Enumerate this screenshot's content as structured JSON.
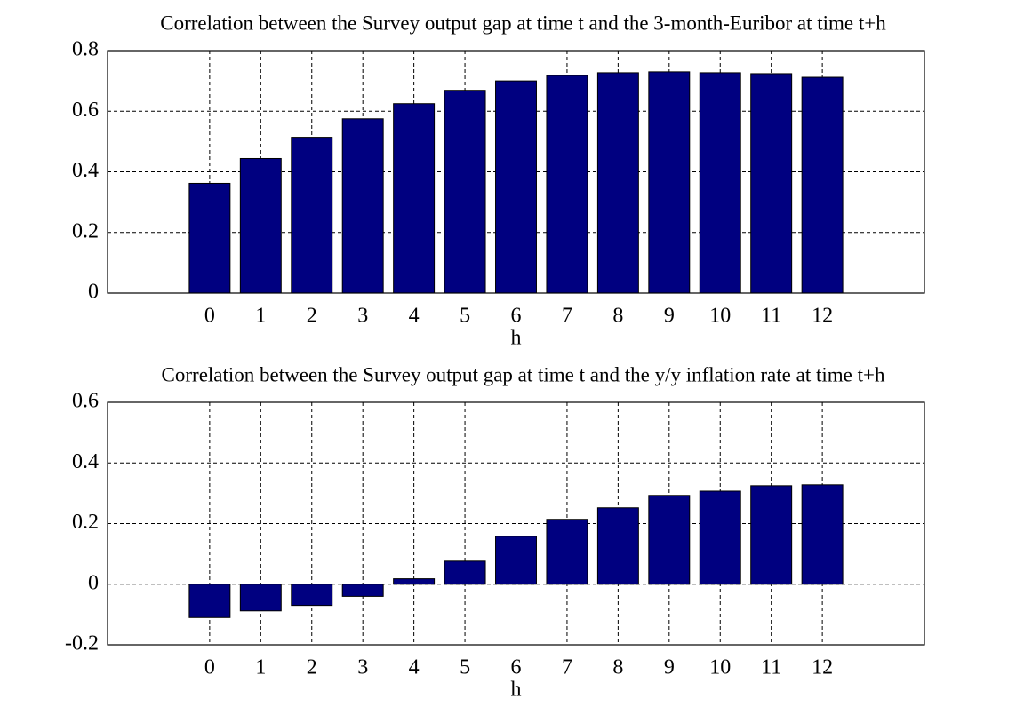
{
  "chart_data": [
    {
      "type": "bar",
      "title": "Correlation between the Survey output gap at time t and the 3-month-Euribor at time t+h",
      "x_label": "h",
      "x": [
        0,
        1,
        2,
        3,
        4,
        5,
        6,
        7,
        8,
        9,
        10,
        11,
        12
      ],
      "values": [
        0.362,
        0.444,
        0.514,
        0.575,
        0.625,
        0.669,
        0.7,
        0.718,
        0.727,
        0.73,
        0.727,
        0.724,
        0.712
      ],
      "color": "#000080",
      "xlim": [
        -2,
        14
      ],
      "xticks": [
        0,
        1,
        2,
        3,
        4,
        5,
        6,
        7,
        8,
        9,
        10,
        11,
        12
      ],
      "ylim": [
        0,
        0.8
      ],
      "yticks": [
        0,
        0.2,
        0.4,
        0.6,
        0.8
      ],
      "grid": true
    },
    {
      "type": "bar",
      "title": "Correlation between the Survey output gap at time t and the y/y inflation rate at time t+h",
      "x_label": "h",
      "x": [
        0,
        1,
        2,
        3,
        4,
        5,
        6,
        7,
        8,
        9,
        10,
        11,
        12
      ],
      "values": [
        -0.11,
        -0.088,
        -0.07,
        -0.04,
        0.018,
        0.076,
        0.158,
        0.214,
        0.252,
        0.293,
        0.307,
        0.325,
        0.328
      ],
      "color": "#000080",
      "xlim": [
        -2,
        14
      ],
      "xticks": [
        0,
        1,
        2,
        3,
        4,
        5,
        6,
        7,
        8,
        9,
        10,
        11,
        12
      ],
      "ylim": [
        -0.2,
        0.6
      ],
      "yticks": [
        -0.2,
        0,
        0.2,
        0.4,
        0.6
      ],
      "grid": true
    }
  ]
}
